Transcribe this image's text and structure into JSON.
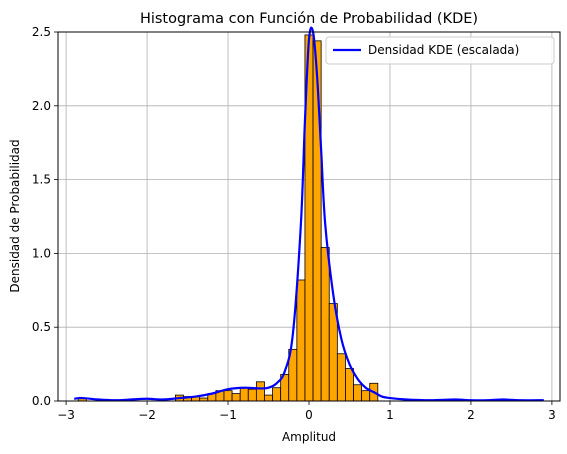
{
  "chart_data": {
    "type": "bar",
    "title": "Histograma con Función de Probabilidad (KDE)",
    "xlabel": "Amplitud",
    "ylabel": "Densidad de Probabilidad",
    "xlim": [
      -3.1,
      3.1
    ],
    "ylim": [
      0,
      2.5
    ],
    "x_ticks": [
      -3,
      -2,
      -1,
      0,
      1,
      2,
      3
    ],
    "y_ticks": [
      0.0,
      0.5,
      1.0,
      1.5,
      2.0,
      2.5
    ],
    "grid": true,
    "legend_position": "top-right",
    "colors": {
      "bars": "#ffa500",
      "bar_edge": "#000000",
      "kde": "#0000ff",
      "grid": "#b0b0b0"
    },
    "histogram": {
      "bin_edges": [
        -2.85,
        -2.75,
        -1.65,
        -1.55,
        -1.45,
        -1.35,
        -1.25,
        -1.15,
        -1.05,
        -0.95,
        -0.85,
        -0.75,
        -0.65,
        -0.55,
        -0.45,
        -0.35,
        -0.25,
        -0.15,
        -0.05,
        0.05,
        0.15,
        0.25,
        0.35,
        0.45,
        0.55,
        0.65,
        0.75,
        0.85
      ],
      "bins": [
        {
          "x0": -2.85,
          "x1": -2.75,
          "value": 0.02
        },
        {
          "x0": -1.65,
          "x1": -1.55,
          "value": 0.04
        },
        {
          "x0": -1.55,
          "x1": -1.45,
          "value": 0.03
        },
        {
          "x0": -1.45,
          "x1": -1.35,
          "value": 0.03
        },
        {
          "x0": -1.35,
          "x1": -1.25,
          "value": 0.02
        },
        {
          "x0": -1.25,
          "x1": -1.15,
          "value": 0.05
        },
        {
          "x0": -1.15,
          "x1": -1.05,
          "value": 0.07
        },
        {
          "x0": -1.05,
          "x1": -0.95,
          "value": 0.07
        },
        {
          "x0": -0.95,
          "x1": -0.85,
          "value": 0.05
        },
        {
          "x0": -0.85,
          "x1": -0.75,
          "value": 0.09
        },
        {
          "x0": -0.75,
          "x1": -0.65,
          "value": 0.08
        },
        {
          "x0": -0.65,
          "x1": -0.55,
          "value": 0.13
        },
        {
          "x0": -0.55,
          "x1": -0.45,
          "value": 0.04
        },
        {
          "x0": -0.45,
          "x1": -0.35,
          "value": 0.09
        },
        {
          "x0": -0.35,
          "x1": -0.25,
          "value": 0.18
        },
        {
          "x0": -0.25,
          "x1": -0.15,
          "value": 0.35
        },
        {
          "x0": -0.15,
          "x1": -0.05,
          "value": 0.82
        },
        {
          "x0": -0.05,
          "x1": 0.05,
          "value": 2.48
        },
        {
          "x0": 0.05,
          "x1": 0.15,
          "value": 2.44
        },
        {
          "x0": 0.15,
          "x1": 0.25,
          "value": 1.04
        },
        {
          "x0": 0.25,
          "x1": 0.35,
          "value": 0.66
        },
        {
          "x0": 0.35,
          "x1": 0.45,
          "value": 0.32
        },
        {
          "x0": 0.45,
          "x1": 0.55,
          "value": 0.22
        },
        {
          "x0": 0.55,
          "x1": 0.65,
          "value": 0.11
        },
        {
          "x0": 0.65,
          "x1": 0.75,
          "value": 0.07
        },
        {
          "x0": 0.75,
          "x1": 0.85,
          "value": 0.12
        }
      ]
    },
    "series": [
      {
        "name": "Densidad KDE (escalada)",
        "type": "line",
        "x": [
          -2.9,
          -2.8,
          -2.6,
          -2.4,
          -2.2,
          -2.0,
          -1.8,
          -1.6,
          -1.4,
          -1.2,
          -1.0,
          -0.8,
          -0.6,
          -0.5,
          -0.4,
          -0.3,
          -0.2,
          -0.1,
          -0.05,
          0.0,
          0.05,
          0.1,
          0.15,
          0.2,
          0.3,
          0.4,
          0.5,
          0.6,
          0.7,
          0.8,
          0.9,
          1.0,
          1.2,
          1.5,
          1.8,
          2.0,
          2.2,
          2.4,
          2.6,
          2.9
        ],
        "y": [
          0.015,
          0.02,
          0.01,
          0.005,
          0.01,
          0.015,
          0.01,
          0.02,
          0.03,
          0.05,
          0.08,
          0.09,
          0.085,
          0.09,
          0.12,
          0.2,
          0.45,
          1.2,
          1.9,
          2.45,
          2.5,
          2.2,
          1.7,
          1.2,
          0.72,
          0.42,
          0.25,
          0.15,
          0.09,
          0.06,
          0.03,
          0.02,
          0.01,
          0.005,
          0.01,
          0.005,
          0.005,
          0.01,
          0.005,
          0.005
        ]
      }
    ]
  }
}
